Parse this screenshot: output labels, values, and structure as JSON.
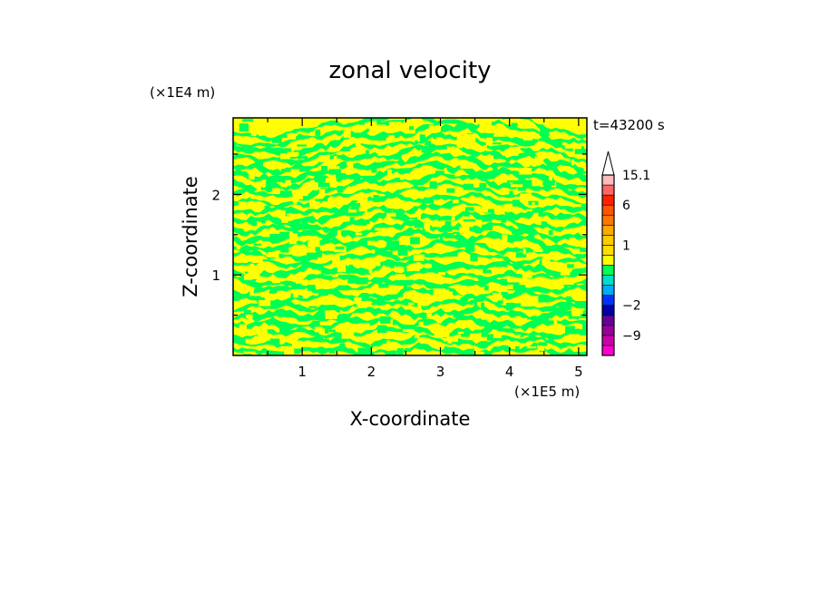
{
  "chart_data": {
    "type": "heatmap",
    "title": "zonal velocity",
    "xlabel": "X-coordinate",
    "ylabel": "Z-coordinate",
    "x_unit": "(×1E5 m)",
    "y_unit": "(×1E4 m)",
    "time_label": "t=43200 s",
    "xlim": [
      0,
      5.12
    ],
    "ylim": [
      0,
      2.95
    ],
    "x_ticks": [
      1,
      2,
      3,
      4,
      5
    ],
    "y_ticks": [
      1,
      2
    ],
    "field": {
      "dominant_bins": [
        "0 to 1",
        "-1 to 0"
      ],
      "colors": [
        "#ffff00",
        "#00ff55"
      ]
    },
    "colorbar": {
      "levels": [
        -15.1,
        -12,
        -9,
        -6,
        -4,
        -2,
        -1.5,
        -1,
        -0.5,
        0,
        0.5,
        1,
        1.5,
        2,
        4,
        6,
        9,
        12,
        15.1
      ],
      "colors": [
        "#ff00cc",
        "#cc00aa",
        "#990099",
        "#660099",
        "#0000aa",
        "#0033ff",
        "#00aaff",
        "#00ddcc",
        "#00ff55",
        "#ffff00",
        "#ffdd00",
        "#ffcc00",
        "#ffaa00",
        "#ff7700",
        "#ff5500",
        "#ff2200",
        "#ff6666",
        "#ffbbbb"
      ],
      "labels": [
        {
          "text": "15.1",
          "value": 15.1
        },
        {
          "text": "6",
          "value": 6
        },
        {
          "text": "1",
          "value": 1
        },
        {
          "text": "−2",
          "value": -2
        },
        {
          "text": "−9",
          "value": -9
        }
      ],
      "overflow_arrow": "top"
    }
  }
}
